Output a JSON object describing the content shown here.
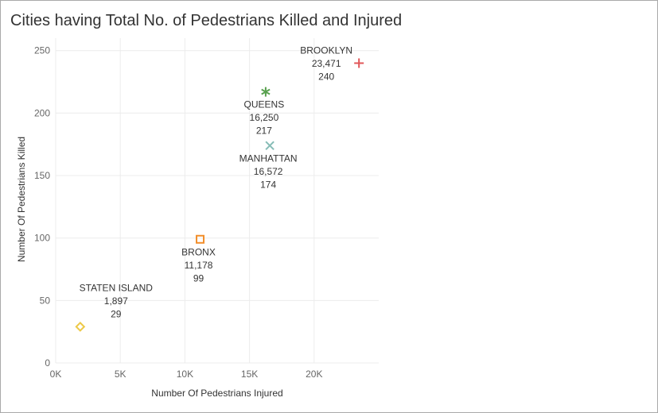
{
  "title": "Cities having Total No. of Pedestrians Killed and Injured",
  "chart_data": {
    "type": "scatter",
    "title": "Cities having Total No. of Pedestrians Killed and Injured",
    "xlabel": "Number Of Pedestrians Injured",
    "ylabel": "Number Of Pedestrians Killed",
    "xlim": [
      0,
      25000
    ],
    "ylim": [
      0,
      260
    ],
    "x_ticks": [
      {
        "value": 0,
        "label": "0K"
      },
      {
        "value": 5000,
        "label": "5K"
      },
      {
        "value": 10000,
        "label": "10K"
      },
      {
        "value": 15000,
        "label": "15K"
      },
      {
        "value": 20000,
        "label": "20K"
      }
    ],
    "y_ticks": [
      {
        "value": 0,
        "label": "0"
      },
      {
        "value": 50,
        "label": "50"
      },
      {
        "value": 100,
        "label": "100"
      },
      {
        "value": 150,
        "label": "150"
      },
      {
        "value": 200,
        "label": "200"
      },
      {
        "value": 250,
        "label": "250"
      }
    ],
    "grid": true,
    "points": [
      {
        "city": "BROOKLYN",
        "x": 23471,
        "y": 240,
        "x_label": "23,471",
        "y_label": "240",
        "marker": "plus",
        "color": "#e15759",
        "label_side": "left"
      },
      {
        "city": "QUEENS",
        "x": 16250,
        "y": 217,
        "x_label": "16,250",
        "y_label": "217",
        "marker": "asterisk",
        "color": "#59a14f",
        "label_side": "below"
      },
      {
        "city": "MANHATTAN",
        "x": 16572,
        "y": 174,
        "x_label": "16,572",
        "y_label": "174",
        "marker": "cross",
        "color": "#86bcb6",
        "label_side": "below"
      },
      {
        "city": "BRONX",
        "x": 11178,
        "y": 99,
        "x_label": "11,178",
        "y_label": "99",
        "marker": "square",
        "color": "#f28e2b",
        "label_side": "below"
      },
      {
        "city": "STATEN ISLAND",
        "x": 1897,
        "y": 29,
        "x_label": "1,897",
        "y_label": "29",
        "marker": "diamond",
        "color": "#edc948",
        "label_side": "above"
      }
    ]
  }
}
